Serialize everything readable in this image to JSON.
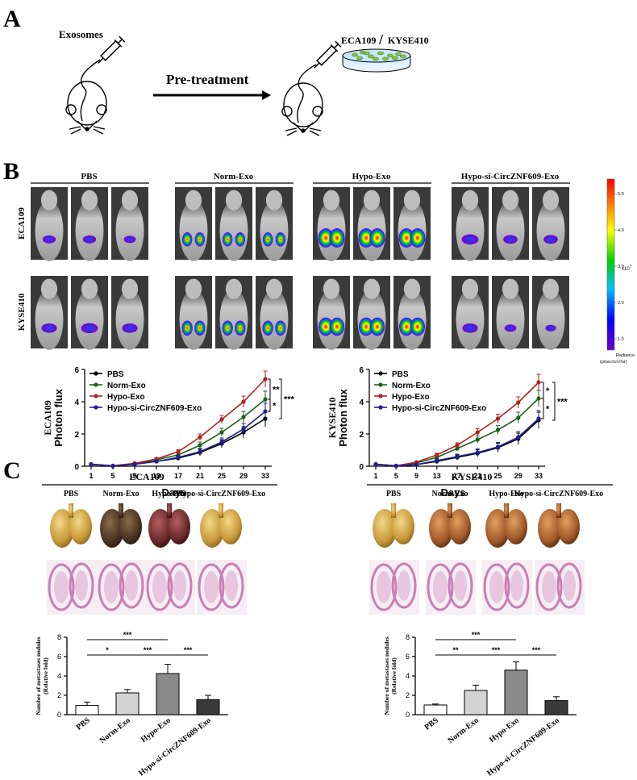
{
  "panels": {
    "a": "A",
    "b": "B",
    "c": "C"
  },
  "schematic": {
    "exosomes_label": "Exosomes",
    "cell_line_left": "ECA109",
    "cell_line_sep": "/",
    "cell_line_right": "KYSE410",
    "arrow_label": "Pre-treatment"
  },
  "imaging": {
    "groups": [
      "PBS",
      "Norm-Exo",
      "Hypo-Exo",
      "Hypo-si-CircZNF609-Exo"
    ],
    "rows": [
      "ECA109",
      "KYSE410"
    ],
    "colorbar": {
      "ticks": [
        "5.0",
        "4.0",
        "3.0",
        "2.0",
        "1.0"
      ],
      "exponent": "x10",
      "exponent_power": "7",
      "unit_line1": "Radiance",
      "unit_line2": "(p/sec/cm²/sr)"
    }
  },
  "chart_data": [
    {
      "type": "line",
      "id": "b-eca109",
      "title": "",
      "ylabel_line1": "ECA109",
      "ylabel_line2": "Photon flux",
      "xlabel": "Days",
      "x": [
        1,
        5,
        9,
        13,
        17,
        21,
        25,
        29,
        33
      ],
      "xticks": [
        "1",
        "5",
        "9",
        "13",
        "17",
        "21",
        "25",
        "29",
        "33"
      ],
      "ylim": [
        0,
        6
      ],
      "yticks": [
        "0",
        "2",
        "4",
        "6"
      ],
      "series": [
        {
          "name": "PBS",
          "color": "#000000",
          "values": [
            0.12,
            0.02,
            0.12,
            0.3,
            0.5,
            0.85,
            1.4,
            2.1,
            2.95
          ]
        },
        {
          "name": "Norm-Exo",
          "color": "#1d5f1d",
          "values": [
            0.12,
            0.02,
            0.15,
            0.4,
            0.7,
            1.3,
            2.1,
            3.05,
            4.15
          ]
        },
        {
          "name": "Hypo-Exo",
          "color": "#b22222",
          "values": [
            0.12,
            0.03,
            0.18,
            0.45,
            0.9,
            1.8,
            2.9,
            4.0,
            5.4
          ]
        },
        {
          "name": "Hypo-si-CircZNF609-Exo",
          "color": "#1f1f8f",
          "values": [
            0.12,
            0.02,
            0.12,
            0.3,
            0.55,
            0.9,
            1.5,
            2.3,
            3.4
          ]
        }
      ],
      "errors": [
        0.05,
        0.03,
        0.05,
        0.08,
        0.12,
        0.2,
        0.25,
        0.35,
        0.5
      ],
      "significance": [
        {
          "label": "**",
          "from": 5.4,
          "to": 4.15
        },
        {
          "label": "*",
          "from": 4.15,
          "to": 3.4
        },
        {
          "label": "***",
          "from": 5.4,
          "to": 2.95
        }
      ]
    },
    {
      "type": "line",
      "id": "b-kyse410",
      "title": "",
      "ylabel_line1": "KYSE410",
      "ylabel_line2": "Photon flux",
      "xlabel": "Days",
      "x": [
        1,
        5,
        9,
        13,
        17,
        21,
        25,
        29,
        33
      ],
      "xticks": [
        "1",
        "5",
        "9",
        "13",
        "17",
        "21",
        "25",
        "29",
        "33"
      ],
      "ylim": [
        0,
        6
      ],
      "yticks": [
        "0",
        "2",
        "4",
        "6"
      ],
      "series": [
        {
          "name": "PBS",
          "color": "#000000",
          "values": [
            0.12,
            0.02,
            0.1,
            0.3,
            0.55,
            0.8,
            1.15,
            1.7,
            2.85
          ]
        },
        {
          "name": "Norm-Exo",
          "color": "#1d5f1d",
          "values": [
            0.12,
            0.02,
            0.2,
            0.55,
            1.1,
            1.65,
            2.25,
            3.0,
            4.2
          ]
        },
        {
          "name": "Hypo-Exo",
          "color": "#b22222",
          "values": [
            0.12,
            0.03,
            0.25,
            0.7,
            1.3,
            2.1,
            2.95,
            3.95,
            5.2
          ]
        },
        {
          "name": "Hypo-si-CircZNF609-Exo",
          "color": "#1f1f8f",
          "values": [
            0.12,
            0.02,
            0.1,
            0.35,
            0.6,
            0.85,
            1.2,
            1.8,
            2.95
          ]
        }
      ],
      "errors": [
        0.05,
        0.03,
        0.06,
        0.1,
        0.15,
        0.22,
        0.28,
        0.35,
        0.5
      ],
      "significance": [
        {
          "label": "*",
          "from": 5.2,
          "to": 4.2
        },
        {
          "label": "*",
          "from": 4.2,
          "to": 2.95
        },
        {
          "label": "***",
          "from": 5.2,
          "to": 2.85
        }
      ]
    },
    {
      "type": "bar",
      "id": "c-eca109",
      "title": "ECA109",
      "categories": [
        "PBS",
        "Norm-Exo",
        "Hypo-Exo",
        "Hypo-si-CircZNF609-Exo"
      ],
      "values": [
        0.95,
        2.25,
        4.25,
        1.55
      ],
      "errors": [
        0.35,
        0.35,
        0.95,
        0.45
      ],
      "colors": [
        "#ffffff",
        "#d3d3d3",
        "#8a8a8a",
        "#3a3a3a"
      ],
      "ylabel_line1": "Number of metastases nodules",
      "ylabel_line2": "(Relative fold)",
      "ylim": [
        0,
        8
      ],
      "yticks": [
        "0",
        "2",
        "4",
        "6",
        "8"
      ],
      "significance": [
        {
          "label": "***",
          "from": 0,
          "to": 2,
          "level": 1
        },
        {
          "label": "*",
          "from": 0,
          "to": 1,
          "level": 0
        },
        {
          "label": "***",
          "from": 1,
          "to": 2,
          "level": 0
        },
        {
          "label": "***",
          "from": 2,
          "to": 3,
          "level": 0
        }
      ]
    },
    {
      "type": "bar",
      "id": "c-kyse410",
      "title": "KYSE410",
      "categories": [
        "PBS",
        "Norm-Exo",
        "Hypo-Exo",
        "Hypo-si-CircZNF609-Exo"
      ],
      "values": [
        1.0,
        2.5,
        4.6,
        1.45
      ],
      "errors": [
        0.1,
        0.55,
        0.85,
        0.4
      ],
      "colors": [
        "#ffffff",
        "#d3d3d3",
        "#8a8a8a",
        "#3a3a3a"
      ],
      "ylabel_line1": "Number of metastases nodules",
      "ylabel_line2": "(Relative fold)",
      "ylim": [
        0,
        8
      ],
      "yticks": [
        "0",
        "2",
        "4",
        "6",
        "8"
      ],
      "significance": [
        {
          "label": "***",
          "from": 0,
          "to": 2,
          "level": 1
        },
        {
          "label": "**",
          "from": 0,
          "to": 1,
          "level": 0
        },
        {
          "label": "***",
          "from": 1,
          "to": 2,
          "level": 0
        },
        {
          "label": "***",
          "from": 2,
          "to": 3,
          "level": 0
        }
      ]
    }
  ],
  "lung_photos": {
    "eca109": {
      "title": "ECA109",
      "labels": [
        "PBS",
        "Norm-Exo",
        "Hypo-Exo",
        "Hypo-si-CircZNF609-Exo"
      ]
    },
    "kyse410": {
      "title": "KYSE410",
      "labels": [
        "PBS",
        "Norm-Exo",
        "Hypo-Exo",
        "Hypo-si-CircZNF609-Exo"
      ]
    }
  },
  "colors": {
    "pbs": "#000000",
    "norm": "#1d5f1d",
    "hypo": "#b22222",
    "hypo_si": "#1f1f8f",
    "he_stain": "#c87fb4"
  }
}
